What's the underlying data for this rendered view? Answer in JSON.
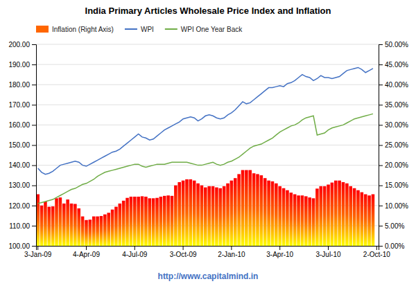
{
  "chart_data": {
    "type": "bar",
    "title": "India Primary Articles Wholesale Price Index and Inflation",
    "annotations": [
      {
        "text": "http://www.capitalmind.in",
        "color": "#4472c4"
      }
    ],
    "categories": [
      "3-Jan-09",
      null,
      null,
      null,
      null,
      null,
      null,
      null,
      null,
      null,
      null,
      null,
      null,
      "4-Apr-09",
      null,
      null,
      null,
      null,
      null,
      null,
      null,
      null,
      null,
      null,
      null,
      null,
      "4-Jul-09",
      null,
      null,
      null,
      null,
      null,
      null,
      null,
      null,
      null,
      null,
      null,
      null,
      "3-Oct-09",
      null,
      null,
      null,
      null,
      null,
      null,
      null,
      null,
      null,
      null,
      null,
      null,
      "2-Jan-10",
      null,
      null,
      null,
      null,
      null,
      null,
      null,
      null,
      null,
      null,
      null,
      null,
      "3-Apr-10",
      null,
      null,
      null,
      null,
      null,
      null,
      null,
      null,
      null,
      null,
      null,
      null,
      "3-Jul-10",
      null,
      null,
      null,
      null,
      null,
      null,
      null,
      null,
      null,
      null,
      null,
      null,
      "2-Oct-10"
    ],
    "series": [
      {
        "name": "Inflation (Right Axis)",
        "type": "bar",
        "axis": "y2",
        "color": "#ff6600",
        "values": [
          0.128,
          0.1,
          0.11,
          0.097,
          0.098,
          0.118,
          0.12,
          0.105,
          0.115,
          0.105,
          0.104,
          0.093,
          0.073,
          0.064,
          0.065,
          0.073,
          0.073,
          0.074,
          0.078,
          0.082,
          0.09,
          0.097,
          0.105,
          0.112,
          0.119,
          0.122,
          0.122,
          0.122,
          0.123,
          0.122,
          0.118,
          0.118,
          0.119,
          0.122,
          0.124,
          0.125,
          0.124,
          0.15,
          0.158,
          0.162,
          0.165,
          0.165,
          0.162,
          0.155,
          0.15,
          0.145,
          0.148,
          0.148,
          0.145,
          0.143,
          0.148,
          0.155,
          0.162,
          0.168,
          0.178,
          0.188,
          0.188,
          0.188,
          0.18,
          0.178,
          0.175,
          0.168,
          0.162,
          0.16,
          0.155,
          0.148,
          0.143,
          0.138,
          0.132,
          0.128,
          0.125,
          0.125,
          0.123,
          0.12,
          0.118,
          0.142,
          0.148,
          0.148,
          0.152,
          0.157,
          0.162,
          0.162,
          0.158,
          0.155,
          0.148,
          0.143,
          0.138,
          0.133,
          0.128,
          0.125,
          0.128,
          null
        ]
      },
      {
        "name": "WPI",
        "type": "line",
        "color": "#4472c4",
        "values": [
          138.5,
          136.5,
          135.5,
          136.0,
          137.0,
          138.5,
          140.0,
          140.5,
          141.0,
          141.5,
          142.0,
          141.5,
          140.0,
          139.5,
          140.5,
          141.5,
          142.5,
          143.5,
          144.5,
          145.5,
          146.5,
          147.0,
          148.0,
          149.5,
          151.0,
          152.5,
          154.0,
          155.5,
          154.0,
          153.5,
          152.5,
          153.0,
          154.5,
          156.0,
          157.5,
          158.5,
          159.5,
          160.5,
          161.5,
          163.0,
          163.5,
          164.0,
          163.5,
          162.0,
          163.0,
          164.5,
          165.0,
          164.5,
          163.5,
          163.0,
          163.5,
          165.0,
          166.0,
          167.5,
          169.5,
          171.5,
          170.5,
          171.0,
          172.5,
          174.0,
          175.5,
          177.0,
          178.5,
          178.5,
          179.0,
          179.5,
          179.0,
          180.5,
          181.0,
          182.0,
          183.5,
          185.0,
          184.0,
          183.5,
          182.0,
          183.0,
          184.5,
          183.5,
          183.5,
          183.0,
          183.5,
          184.0,
          185.5,
          187.0,
          187.5,
          188.0,
          188.5,
          187.5,
          186.0,
          187.0,
          188.0,
          null
        ]
      },
      {
        "name": "WPI One Year Back",
        "type": "line",
        "color": "#70ad47",
        "values": [
          121.0,
          121.5,
          122.0,
          122.5,
          123.0,
          124.0,
          125.0,
          126.0,
          127.0,
          128.0,
          128.5,
          129.5,
          130.5,
          131.0,
          132.0,
          133.0,
          134.5,
          135.5,
          136.5,
          137.0,
          137.5,
          138.0,
          138.5,
          139.0,
          139.5,
          140.0,
          140.5,
          140.5,
          139.5,
          139.0,
          139.5,
          140.0,
          140.5,
          140.5,
          140.5,
          141.0,
          141.5,
          141.5,
          141.5,
          141.5,
          141.5,
          141.0,
          140.5,
          140.0,
          140.0,
          140.5,
          141.0,
          141.5,
          140.5,
          140.0,
          140.5,
          141.5,
          142.0,
          143.0,
          144.0,
          145.5,
          147.0,
          148.5,
          149.5,
          150.0,
          150.5,
          151.5,
          152.5,
          153.5,
          155.0,
          156.5,
          157.5,
          158.5,
          159.5,
          160.0,
          161.0,
          162.5,
          163.5,
          164.0,
          164.5,
          155.0,
          155.5,
          156.0,
          157.5,
          158.5,
          159.0,
          159.5,
          160.0,
          161.0,
          162.0,
          163.0,
          163.5,
          164.0,
          164.5,
          165.0,
          165.5,
          null
        ]
      }
    ],
    "ylim": [
      100,
      200
    ],
    "yticks": [
      {
        "value": 100,
        "label": "100.00"
      },
      {
        "value": 110,
        "label": "110.00"
      },
      {
        "value": 120,
        "label": "120.00"
      },
      {
        "value": 130,
        "label": "130.00"
      },
      {
        "value": 140,
        "label": "140.00"
      },
      {
        "value": 150,
        "label": "150.00"
      },
      {
        "value": 160,
        "label": "160.00"
      },
      {
        "value": 170,
        "label": "170.00"
      },
      {
        "value": 180,
        "label": "180.00"
      },
      {
        "value": 190,
        "label": "190.00"
      },
      {
        "value": 200,
        "label": "200.00"
      }
    ],
    "y2lim": [
      0,
      0.5
    ],
    "y2ticks": [
      {
        "value": 0.0,
        "label": "0.00%"
      },
      {
        "value": 0.05,
        "label": "5.00%"
      },
      {
        "value": 0.1,
        "label": "10.00%"
      },
      {
        "value": 0.15,
        "label": "15.00%"
      },
      {
        "value": 0.2,
        "label": "20.00%"
      },
      {
        "value": 0.25,
        "label": "25.00%"
      },
      {
        "value": 0.3,
        "label": "30.00%"
      },
      {
        "value": 0.35,
        "label": "35.00%"
      },
      {
        "value": 0.4,
        "label": "40.00%"
      },
      {
        "value": 0.45,
        "label": "45.00%"
      },
      {
        "value": 0.5,
        "label": "50.00%"
      }
    ],
    "grid": true,
    "legend": "top-left"
  }
}
